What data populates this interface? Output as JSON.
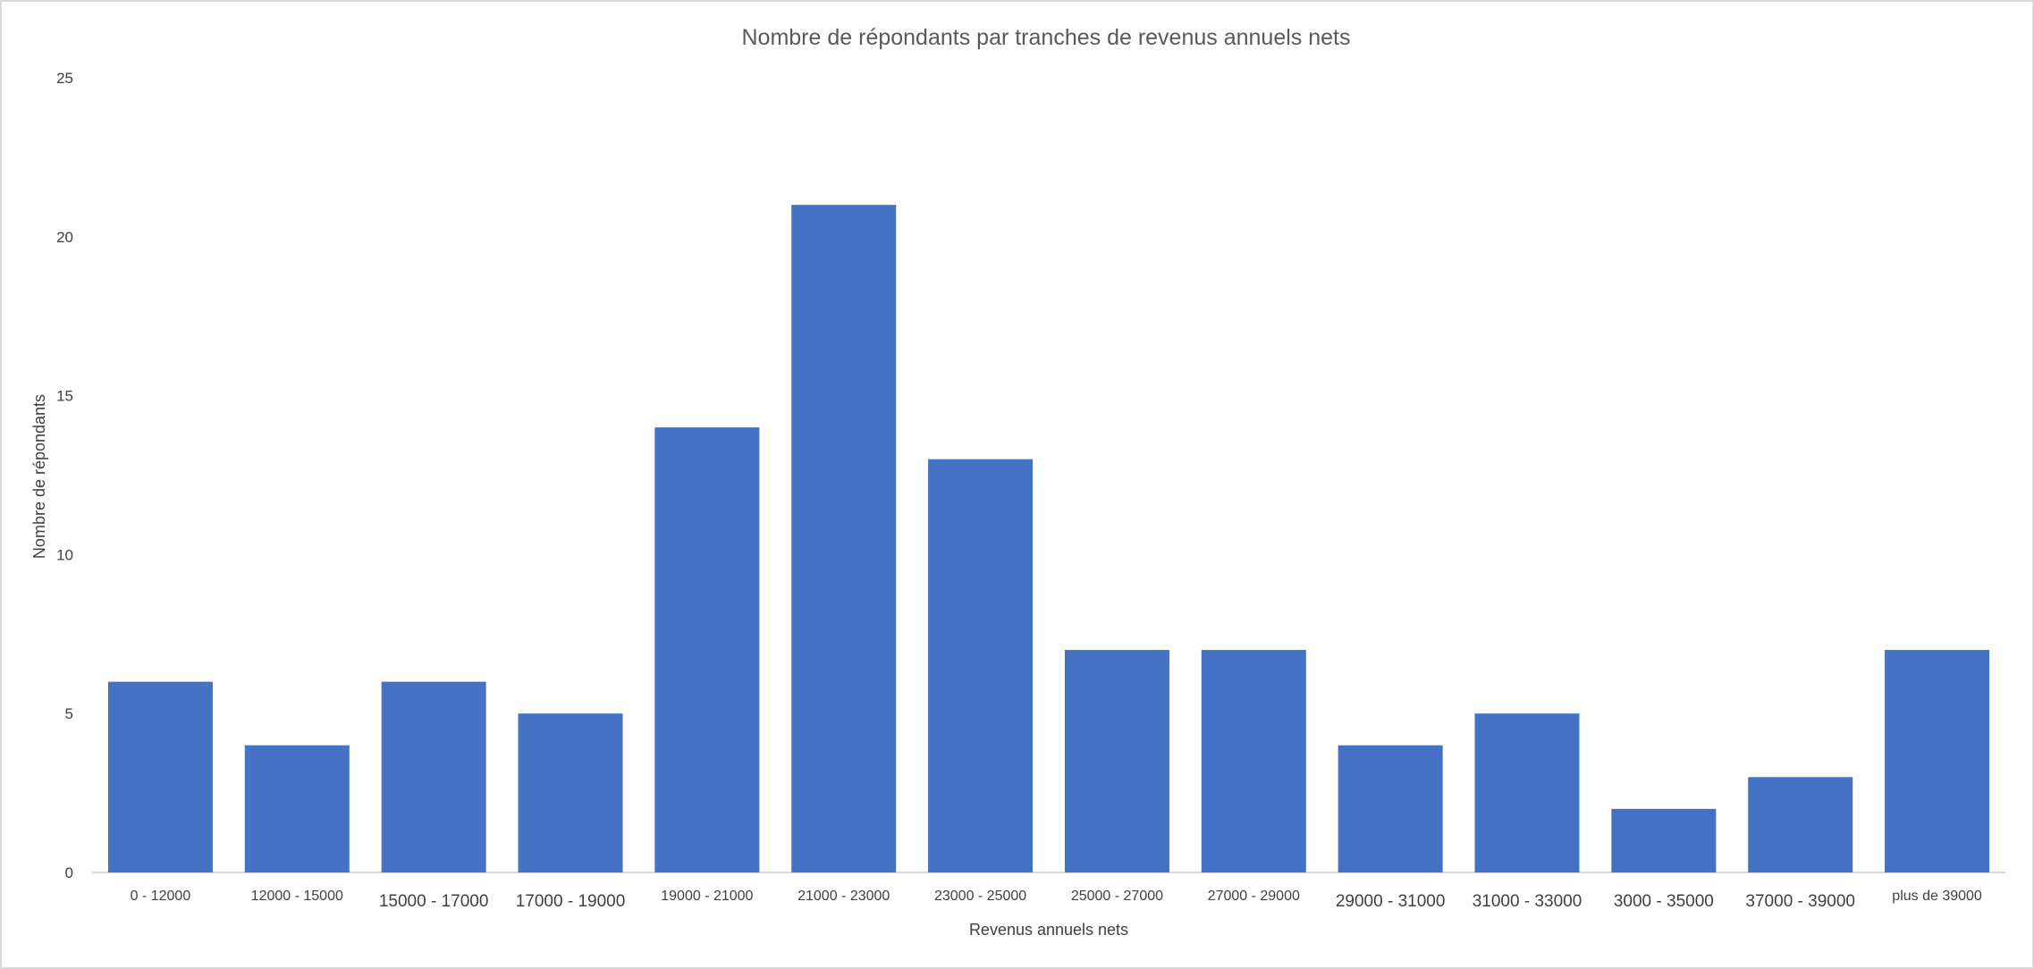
{
  "chart_data": {
    "type": "bar",
    "title": "Nombre de répondants par tranches de revenus annuels nets",
    "xlabel": "Revenus annuels nets",
    "ylabel": "Nombre de répondants",
    "ylim": [
      0,
      25
    ],
    "yticks": [
      "0",
      "5",
      "10",
      "15",
      "20",
      "25"
    ],
    "grid": false,
    "legend": "none",
    "bar_color": "#4472C4",
    "categories": [
      "0 - 12000",
      "12000 - 15000",
      "15000  -  17000",
      "17000  -  19000",
      "19000 - 21000",
      "21000 - 23000",
      "23000 - 25000",
      "25000 - 27000",
      "27000 - 29000",
      "29000  -  31000",
      "31000  -  33000",
      "3000  -  35000",
      "37000  -  39000",
      "plus de 39000"
    ],
    "values": [
      6,
      4,
      6,
      5,
      14,
      21,
      13,
      7,
      7,
      4,
      5,
      2,
      3,
      7
    ]
  }
}
